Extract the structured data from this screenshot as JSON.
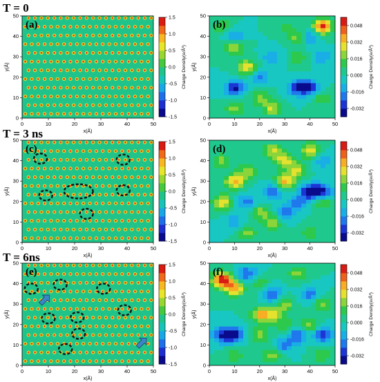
{
  "rows": [
    {
      "title": "T = 0"
    },
    {
      "title": "T = 3 ns"
    },
    {
      "title": "T = 6ns"
    }
  ],
  "colors": {
    "left_scale": [
      "#0a0a8c",
      "#1e2fd0",
      "#1f6fe8",
      "#19a7e6",
      "#18c4b8",
      "#20c48a",
      "#46c93e",
      "#98d632",
      "#e8e62a",
      "#f8b822",
      "#f06a1a",
      "#d91b12"
    ],
    "right_scale": [
      "#0a0a8c",
      "#1c36d6",
      "#1f78ec",
      "#1aaee6",
      "#18c7c2",
      "#1fc98e",
      "#2cc94c",
      "#8bd43a",
      "#e4e22e",
      "#f7ad24",
      "#ee611b",
      "#d81b14"
    ],
    "circle": "#111111",
    "arrow": "#3b86c9"
  },
  "chart_data": [
    {
      "id": "a",
      "panel_label": "(a)",
      "type": "heatmap",
      "xlabel": "x(Å)",
      "ylabel": "y(Å)",
      "xlim": [
        0,
        50
      ],
      "ylim": [
        0,
        50
      ],
      "xticks": [
        "0",
        "10",
        "20",
        "30",
        "40",
        "50"
      ],
      "yticks": [
        "0",
        "10",
        "20",
        "30",
        "40",
        "50"
      ],
      "colorbar": {
        "label": "Charge Density(e/Å³)",
        "ticks": [
          "1.5",
          "1.0",
          "0.5",
          "0.0",
          "-0.5",
          "-1.0",
          "-1.5"
        ],
        "range": [
          -1.5,
          1.5
        ]
      },
      "lattice": {
        "spacing_x": 2.46,
        "spacing_y": 4.26,
        "row_offset_x": 1.23
      },
      "circles": [],
      "arrows": []
    },
    {
      "id": "b",
      "panel_label": "(b)",
      "type": "heatmap",
      "xlabel": "x(Å)",
      "ylabel": "y(Å)",
      "xlim": [
        0,
        50
      ],
      "ylim": [
        0,
        50
      ],
      "xticks": [
        "0",
        "10",
        "20",
        "30",
        "40",
        "50"
      ],
      "yticks": [
        "0",
        "10",
        "20",
        "30",
        "40",
        "50"
      ],
      "colorbar": {
        "label": "Charge Density(e/Å³)",
        "ticks": [
          "0.048",
          "0.032",
          "0.016",
          "0.000",
          "-0.016",
          "-0.032"
        ],
        "range": [
          -0.04,
          0.056
        ]
      },
      "hotspots": [
        {
          "x": 45,
          "y": 45,
          "v": 0.05
        },
        {
          "x": 40,
          "y": 40,
          "v": -0.02
        },
        {
          "x": 35,
          "y": 40,
          "v": 0.02
        },
        {
          "x": 10,
          "y": 40,
          "v": -0.02
        },
        {
          "x": 10,
          "y": 35,
          "v": 0.025
        },
        {
          "x": 15,
          "y": 25,
          "v": 0.03
        },
        {
          "x": 10,
          "y": 15,
          "v": -0.035
        },
        {
          "x": 35,
          "y": 15,
          "v": -0.03
        },
        {
          "x": 40,
          "y": 15,
          "v": -0.03
        },
        {
          "x": 20,
          "y": 20,
          "v": -0.02
        },
        {
          "x": 25,
          "y": 30,
          "v": -0.015
        },
        {
          "x": 10,
          "y": 5,
          "v": 0.02
        },
        {
          "x": 25,
          "y": 5,
          "v": 0.025
        },
        {
          "x": 20,
          "y": 10,
          "v": 0.02
        },
        {
          "x": 35,
          "y": 30,
          "v": 0.015
        },
        {
          "x": 45,
          "y": 10,
          "v": 0.015
        },
        {
          "x": 5,
          "y": 45,
          "v": 0.015
        },
        {
          "x": 45,
          "y": 30,
          "v": -0.015
        },
        {
          "x": 30,
          "y": 45,
          "v": 0.01
        }
      ]
    },
    {
      "id": "c",
      "panel_label": "(c)",
      "type": "heatmap",
      "xlabel": "x(Å)",
      "ylabel": "y(Å)",
      "xlim": [
        0,
        50
      ],
      "ylim": [
        0,
        50
      ],
      "xticks": [
        "0",
        "10",
        "20",
        "30",
        "40",
        "50"
      ],
      "yticks": [
        "0",
        "10",
        "20",
        "30",
        "40",
        "50"
      ],
      "colorbar": {
        "label": "Charge Density(e/Å³)",
        "ticks": [
          "1.5",
          "1.0",
          "0.5",
          "0.0",
          "-0.5",
          "-1.0",
          "-1.5"
        ],
        "range": [
          -1.5,
          1.5
        ]
      },
      "lattice": {
        "spacing_x": 2.46,
        "spacing_y": 4.26,
        "row_offset_x": 1.23
      },
      "circles": [
        {
          "x": 7,
          "y": 41,
          "rx": 2.5,
          "ry": 2.5
        },
        {
          "x": 38.5,
          "y": 40.5,
          "rx": 2.5,
          "ry": 2.5
        },
        {
          "x": 21.5,
          "y": 25,
          "rx": 5.5,
          "ry": 3.5
        },
        {
          "x": 9,
          "y": 23,
          "rx": 2.5,
          "ry": 2.5
        },
        {
          "x": 38.5,
          "y": 25.5,
          "rx": 2.5,
          "ry": 2.5
        },
        {
          "x": 24.5,
          "y": 14,
          "rx": 2.5,
          "ry": 2.5
        }
      ],
      "arrows": []
    },
    {
      "id": "d",
      "panel_label": "(d)",
      "type": "heatmap",
      "xlabel": "x(Å)",
      "ylabel": "y(Å)",
      "xlim": [
        0,
        50
      ],
      "ylim": [
        0,
        50
      ],
      "xticks": [
        "0",
        "10",
        "20",
        "30",
        "40",
        "50"
      ],
      "yticks": [
        "0",
        "10",
        "20",
        "30",
        "40",
        "50"
      ],
      "colorbar": {
        "label": "Charge Density(e/Å³)",
        "ticks": [
          "0.048",
          "0.032",
          "0.016",
          "0.000",
          "-0.016",
          "-0.032"
        ],
        "range": [
          -0.04,
          0.056
        ]
      },
      "hotspots": [
        {
          "x": 25,
          "y": 45,
          "v": 0.025
        },
        {
          "x": 30,
          "y": 40,
          "v": 0.03
        },
        {
          "x": 40,
          "y": 45,
          "v": 0.03
        },
        {
          "x": 5,
          "y": 40,
          "v": 0.02
        },
        {
          "x": 15,
          "y": 35,
          "v": 0.02
        },
        {
          "x": 10,
          "y": 30,
          "v": 0.035
        },
        {
          "x": 30,
          "y": 30,
          "v": 0.035
        },
        {
          "x": 35,
          "y": 35,
          "v": 0.025
        },
        {
          "x": 40,
          "y": 25,
          "v": -0.04
        },
        {
          "x": 45,
          "y": 25,
          "v": -0.035
        },
        {
          "x": 25,
          "y": 25,
          "v": -0.025
        },
        {
          "x": 15,
          "y": 20,
          "v": -0.02
        },
        {
          "x": 5,
          "y": 20,
          "v": 0.03
        },
        {
          "x": 45,
          "y": 20,
          "v": 0.02
        },
        {
          "x": 30,
          "y": 15,
          "v": -0.02
        },
        {
          "x": 35,
          "y": 20,
          "v": -0.02
        },
        {
          "x": 15,
          "y": 5,
          "v": 0.02
        },
        {
          "x": 25,
          "y": 10,
          "v": 0.02
        },
        {
          "x": 40,
          "y": 5,
          "v": 0.015
        },
        {
          "x": 20,
          "y": 15,
          "v": 0.02
        },
        {
          "x": 45,
          "y": 40,
          "v": -0.015
        },
        {
          "x": 10,
          "y": 10,
          "v": -0.015
        }
      ]
    },
    {
      "id": "e",
      "panel_label": "(e)",
      "type": "heatmap",
      "xlabel": "x(Å)",
      "ylabel": "y(Å)",
      "xlim": [
        0,
        50
      ],
      "ylim": [
        0,
        50
      ],
      "xticks": [
        "0",
        "10",
        "20",
        "30",
        "40",
        "50"
      ],
      "yticks": [
        "0",
        "10",
        "20",
        "30",
        "40",
        "50"
      ],
      "colorbar": {
        "label": "Charge Density(e/Å³)",
        "ticks": [
          "1.5",
          "1.0",
          "0.5",
          "0.0",
          "-0.5",
          "-1.0",
          "-1.5"
        ],
        "range": [
          -1.5,
          1.5
        ]
      },
      "lattice": {
        "spacing_x": 2.46,
        "spacing_y": 4.26,
        "row_offset_x": 1.23
      },
      "circles": [
        {
          "x": 3.5,
          "y": 37.5,
          "rx": 2.5,
          "ry": 2.5
        },
        {
          "x": 14.5,
          "y": 39.5,
          "rx": 2.5,
          "ry": 2.5
        },
        {
          "x": 31,
          "y": 37.5,
          "rx": 2.5,
          "ry": 2.5
        },
        {
          "x": 10,
          "y": 23,
          "rx": 2.5,
          "ry": 2.5
        },
        {
          "x": 21,
          "y": 23.5,
          "rx": 2.5,
          "ry": 2.5
        },
        {
          "x": 39,
          "y": 27,
          "rx": 2.5,
          "ry": 2.5
        },
        {
          "x": 21.5,
          "y": 15.5,
          "rx": 2.5,
          "ry": 2.5
        },
        {
          "x": 16.5,
          "y": 8,
          "rx": 2.5,
          "ry": 2.5
        }
      ],
      "arrows": [
        {
          "x": 8.5,
          "y": 32,
          "angle": -45
        },
        {
          "x": 45.5,
          "y": 11,
          "angle": -45
        }
      ]
    },
    {
      "id": "f",
      "panel_label": "(f)",
      "type": "heatmap",
      "xlabel": "x(Å)",
      "ylabel": "y(Å)",
      "xlim": [
        0,
        50
      ],
      "ylim": [
        0,
        50
      ],
      "xticks": [
        "0",
        "10",
        "20",
        "30",
        "40",
        "50"
      ],
      "yticks": [
        "0",
        "10",
        "20",
        "30",
        "40",
        "50"
      ],
      "colorbar": {
        "label": "Charge Density(e/Å³)",
        "ticks": [
          "0.048",
          "0.032",
          "0.016",
          "0.000",
          "-0.016",
          "-0.032"
        ],
        "range": [
          -0.04,
          0.056
        ]
      },
      "hotspots": [
        {
          "x": 5,
          "y": 42,
          "v": 0.055
        },
        {
          "x": 10,
          "y": 38,
          "v": 0.04
        },
        {
          "x": 15,
          "y": 45,
          "v": -0.025
        },
        {
          "x": 25,
          "y": 35,
          "v": -0.025
        },
        {
          "x": 40,
          "y": 35,
          "v": -0.02
        },
        {
          "x": 20,
          "y": 25,
          "v": 0.03
        },
        {
          "x": 25,
          "y": 25,
          "v": 0.025
        },
        {
          "x": 10,
          "y": 15,
          "v": -0.035
        },
        {
          "x": 5,
          "y": 15,
          "v": -0.03
        },
        {
          "x": 20,
          "y": 15,
          "v": 0.02
        },
        {
          "x": 35,
          "y": 15,
          "v": -0.025
        },
        {
          "x": 45,
          "y": 15,
          "v": -0.03
        },
        {
          "x": 40,
          "y": 20,
          "v": 0.02
        },
        {
          "x": 30,
          "y": 20,
          "v": 0.015
        },
        {
          "x": 45,
          "y": 30,
          "v": 0.02
        },
        {
          "x": 30,
          "y": 30,
          "v": 0.02
        },
        {
          "x": 25,
          "y": 5,
          "v": 0.02
        },
        {
          "x": 45,
          "y": 5,
          "v": 0.015
        },
        {
          "x": 10,
          "y": 5,
          "v": 0.015
        },
        {
          "x": 35,
          "y": 45,
          "v": 0.02
        },
        {
          "x": 30,
          "y": 10,
          "v": -0.02
        },
        {
          "x": 20,
          "y": 40,
          "v": 0.015
        }
      ]
    }
  ]
}
